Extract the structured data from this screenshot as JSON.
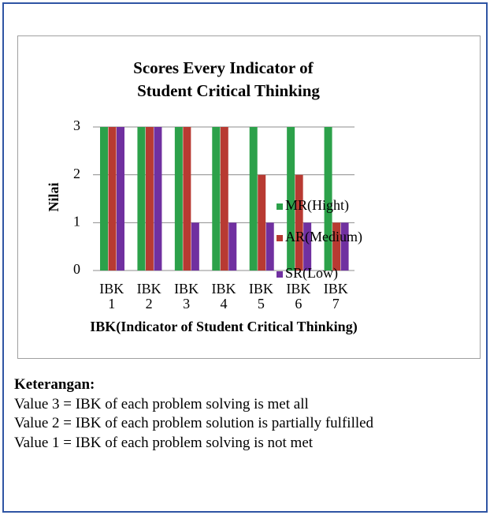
{
  "chart_data": {
    "type": "bar",
    "title": "Scores Every Indicator of Student Critical Thinking",
    "y_label": "Nilai",
    "x_label": "IBK(Indicator of Student Critical Thinking)",
    "categories": [
      "IBK 1",
      "IBK 2",
      "IBK 3",
      "IBK 4",
      "IBK 5",
      "IBK 6",
      "IBK 7"
    ],
    "series": [
      {
        "name": "MR(Hight)",
        "color": "#2ca14a",
        "values": [
          3,
          3,
          3,
          3,
          3,
          3,
          3
        ]
      },
      {
        "name": "AR(Medium)",
        "color": "#b83a32",
        "values": [
          3,
          3,
          3,
          3,
          2,
          2,
          1
        ]
      },
      {
        "name": "SR(Low)",
        "color": "#7030a0",
        "values": [
          3,
          3,
          1,
          1,
          1,
          1,
          1
        ]
      }
    ],
    "ylim": [
      0,
      3
    ],
    "yticks": [
      0,
      1,
      2,
      3
    ],
    "grid": true,
    "legend": "right"
  },
  "notes": {
    "heading": "Keterangan:",
    "lines": [
      "Value 3 = IBK of each problem solving is met all",
      "Value 2 = IBK of each problem solution is partially fulfilled",
      "Value 1 = IBK of each problem solving is not met"
    ]
  }
}
